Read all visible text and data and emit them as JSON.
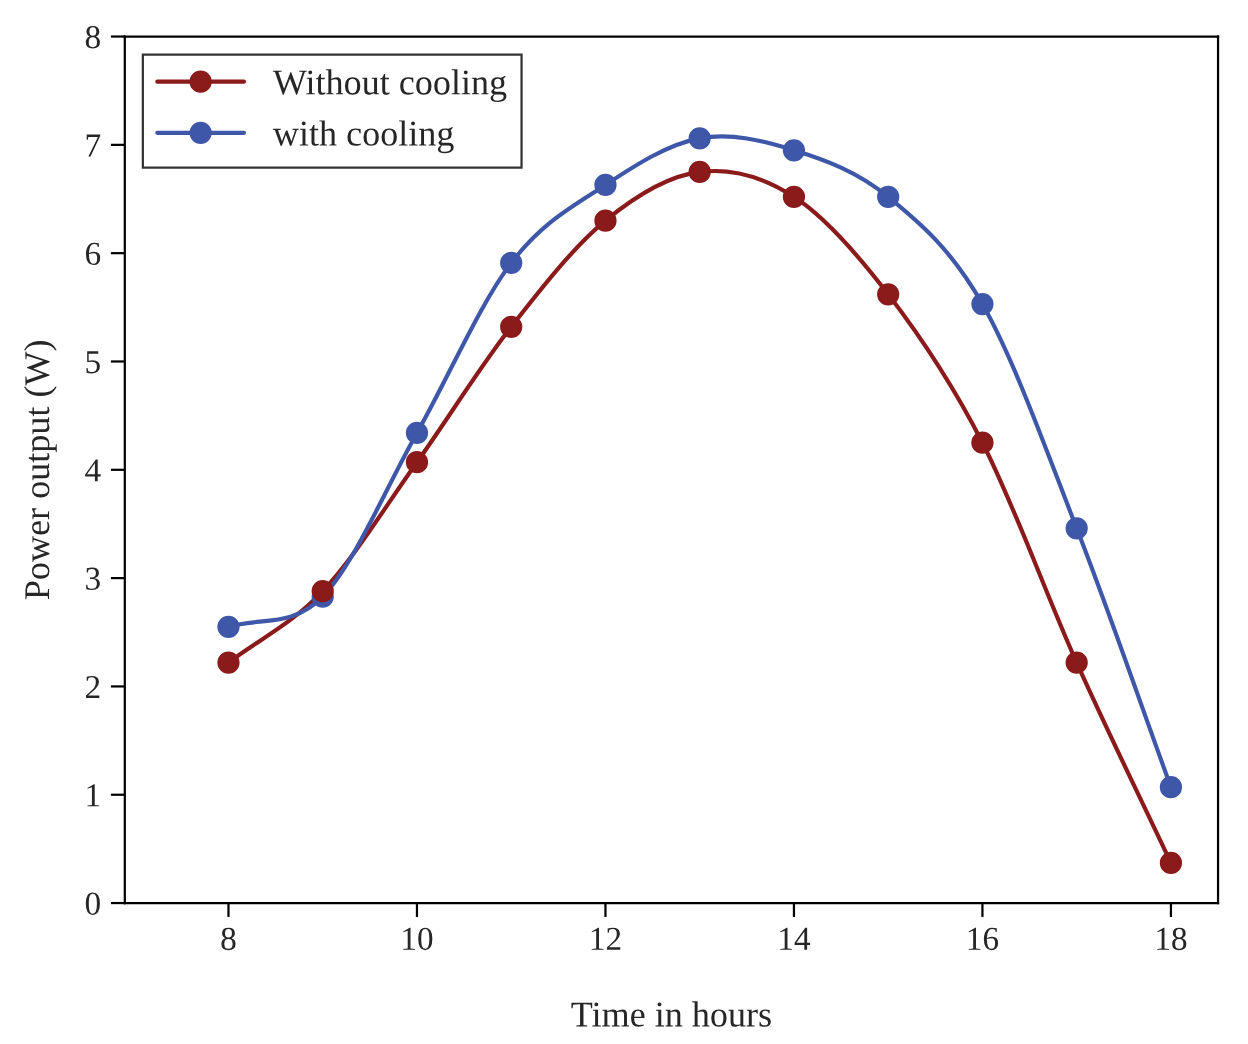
{
  "chart_data": {
    "type": "line",
    "xlabel": "Time in hours",
    "ylabel": "Power output (W)",
    "x": [
      8,
      9,
      10,
      11,
      12,
      13,
      14,
      15,
      16,
      17,
      18
    ],
    "series": [
      {
        "name": "Without cooling",
        "color": "#8b1a1a",
        "values": [
          2.22,
          2.88,
          4.07,
          5.32,
          6.3,
          6.75,
          6.52,
          5.62,
          4.25,
          2.22,
          0.37
        ]
      },
      {
        "name": "with cooling",
        "color": "#3f57a8",
        "values": [
          2.55,
          2.83,
          4.34,
          5.91,
          6.63,
          7.06,
          6.95,
          6.52,
          5.53,
          3.46,
          1.07
        ]
      }
    ],
    "xlim": [
      6.9,
      18.5
    ],
    "ylim": [
      0,
      8
    ],
    "xticks": [
      8,
      10,
      12,
      14,
      16,
      18
    ],
    "yticks": [
      0,
      1,
      2,
      3,
      4,
      5,
      6,
      7,
      8
    ],
    "marker": "circle",
    "line_style": "solid",
    "legend": "top left",
    "grid": false
  }
}
